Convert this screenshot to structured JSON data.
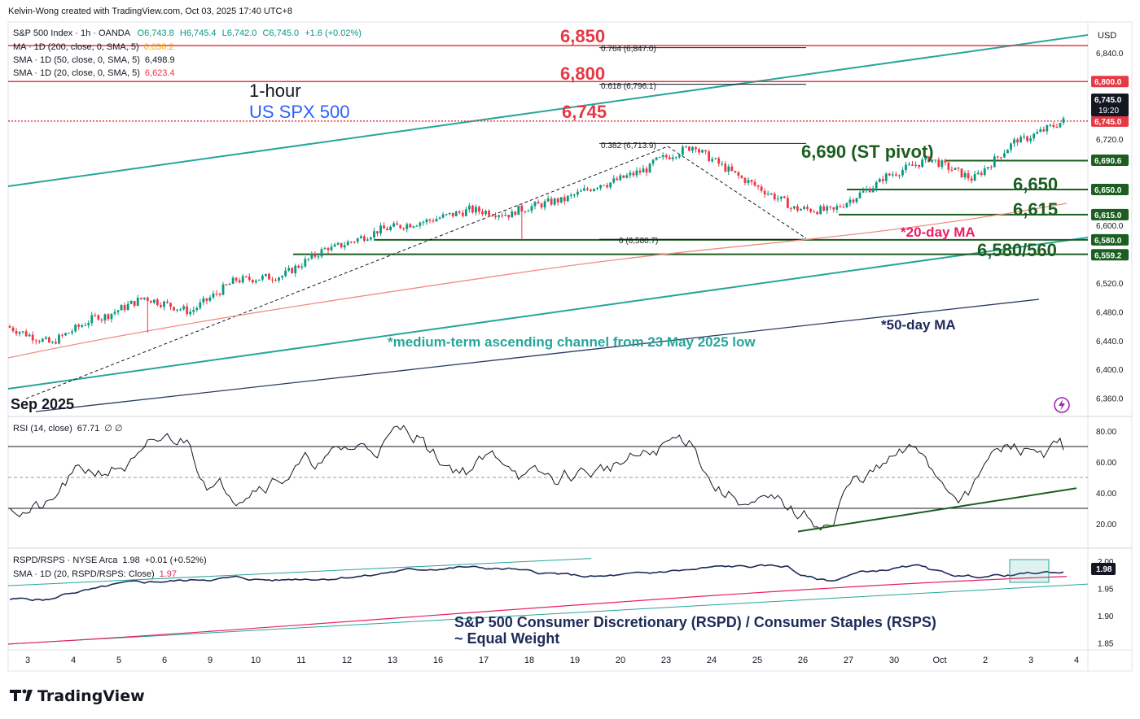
{
  "header": {
    "credit": "Kelvin-Wong created with TradingView.com, Oct 03, 2025 17:40 UTC+8"
  },
  "main_pane": {
    "legend": {
      "symbol": "S&P 500 Index · 1h · OANDA",
      "o": "O6,743.8",
      "h": "H6,745.4",
      "l": "L6,742.0",
      "c": "C6,745.0",
      "chg": "+1.6 (+0.02%)",
      "ma200": "MA · 1D (200, close, 0, SMA, 5)",
      "ma200_val": "6,036.2",
      "sma50": "SMA · 1D (50, close, 0, SMA, 5)",
      "sma50_val": "6,498.9",
      "sma20": "SMA · 1D (20, close, 0, SMA, 5)",
      "sma20_val": "6,623.4"
    },
    "title_line1": "1-hour",
    "title_line2": "US SPX 500",
    "start_label": "Sep 2025",
    "annotations": {
      "r1": "6,850",
      "r2": "6,800",
      "r3": "6,745",
      "pivot": "6,690 (ST pivot)",
      "s1": "6,650",
      "s2": "6,615",
      "s3": "6,580/560",
      "ma20": "*20-day MA",
      "ma50": "*50-day MA",
      "channel": "*medium-term ascending channel from 23 May 2025 low"
    },
    "fib": {
      "f764": "0.764 (6,847.0)",
      "f618": "0.618 (6,796.1)",
      "f382": "0.382 (6,713.9)",
      "f0": "0 (6,580.7)"
    },
    "currency": "USD",
    "price_ticks": [
      "6,360.0",
      "6,400.0",
      "6,440.0",
      "6,480.0",
      "6,520.0",
      "6,600.0",
      "6,720.0",
      "6,840.0"
    ],
    "price_tags": [
      {
        "label": "6,800.0",
        "value": 6800,
        "color": "#e53945"
      },
      {
        "label": "6,745.0",
        "value": 6745,
        "color": "#e53945"
      },
      {
        "label": "6,690.6",
        "value": 6690.6,
        "color": "#1b5e20"
      },
      {
        "label": "6,650.0",
        "value": 6650,
        "color": "#1b5e20"
      },
      {
        "label": "6,615.0",
        "value": 6615,
        "color": "#1b5e20"
      },
      {
        "label": "6,580.0",
        "value": 6580,
        "color": "#1b5e20"
      },
      {
        "label": "6,559.2",
        "value": 6559.2,
        "color": "#1b5e20"
      }
    ],
    "last_price": "6,745.0",
    "countdown": "19:20"
  },
  "rsi_pane": {
    "legend": "RSI (14, close)",
    "value": "67.71",
    "extra": "∅ ∅",
    "ticks": [
      "80.00",
      "60.00",
      "40.00",
      "20.00"
    ]
  },
  "ratio_pane": {
    "legend": "RSPD/RSPS · NYSE Arca",
    "value": "1.98",
    "chg": "+0.01 (+0.52%)",
    "sma_legend": "SMA · 1D (20, RSPD/RSPS: Close)",
    "sma_value": "1.97",
    "caption_line1": "S&P 500 Consumer Discretionary (RSPD) / Consumer Staples (RSPS)",
    "caption_line2": "~ Equal Weight",
    "ticks": [
      "2.00",
      "1.95",
      "1.90",
      "1.85"
    ],
    "last_tag": "1.98"
  },
  "x_axis": {
    "labels": [
      "3",
      "4",
      "5",
      "6",
      "9",
      "10",
      "11",
      "12",
      "13",
      "16",
      "17",
      "18",
      "19",
      "20",
      "23",
      "24",
      "25",
      "26",
      "27",
      "30",
      "Oct",
      "2",
      "3",
      "4"
    ]
  },
  "footer": {
    "brand": "TradingView"
  },
  "colors": {
    "up": "#089981",
    "down": "#f23645",
    "channel": "#26a69a",
    "resistance": "#e53945",
    "support": "#1b5e20",
    "ma20": "#f28b82",
    "ma50": "#2a3a66",
    "rsi": "#131722",
    "ratio": "#1e2a5a"
  },
  "chart_data": [
    {
      "type": "candlestick",
      "title": "S&P 500 Index · 1h · OANDA",
      "x": [
        "Sep 3",
        "Sep 4",
        "Sep 5",
        "Sep 8",
        "Sep 9",
        "Sep 10",
        "Sep 11",
        "Sep 12",
        "Sep 15",
        "Sep 16",
        "Sep 17",
        "Sep 18",
        "Sep 19",
        "Sep 22",
        "Sep 23",
        "Sep 24",
        "Sep 25",
        "Sep 26",
        "Sep 29",
        "Sep 30",
        "Oct 1",
        "Oct 2",
        "Oct 3"
      ],
      "close_approx": [
        6435,
        6475,
        6500,
        6480,
        6525,
        6530,
        6570,
        6590,
        6605,
        6620,
        6615,
        6635,
        6660,
        6680,
        6712,
        6665,
        6630,
        6620,
        6660,
        6690,
        6665,
        6720,
        6745
      ],
      "series": [
        {
          "name": "SMA · 1D (20, close, 0, SMA, 5)",
          "last": 6623.4
        },
        {
          "name": "SMA · 1D (50, close, 0, SMA, 5)",
          "last": 6498.9
        },
        {
          "name": "MA · 1D (200, close, 0, SMA, 5)",
          "last": 6036.2
        }
      ],
      "levels": [
        6850,
        6800,
        6745,
        6690,
        6650,
        6615,
        6580,
        6560
      ],
      "ylim": [
        6340,
        6860
      ]
    },
    {
      "type": "line",
      "title": "RSI (14, close)",
      "last": 67.71,
      "levels": [
        70,
        50,
        30
      ],
      "ylim": [
        10,
        85
      ]
    },
    {
      "type": "line",
      "title": "RSPD/RSPS · NYSE Arca",
      "last": 1.98,
      "series": [
        {
          "name": "SMA · 1D (20, RSPD/RSPS: Close)",
          "last": 1.97
        }
      ],
      "ylim": [
        1.84,
        2.02
      ]
    }
  ]
}
